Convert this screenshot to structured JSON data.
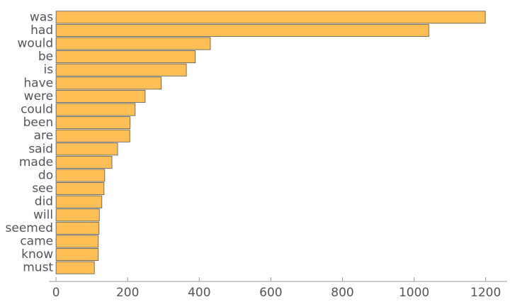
{
  "chart_data": {
    "type": "bar",
    "orientation": "horizontal",
    "categories": [
      "was",
      "had",
      "would",
      "be",
      "is",
      "have",
      "were",
      "could",
      "been",
      "are",
      "said",
      "made",
      "do",
      "see",
      "did",
      "will",
      "seemed",
      "came",
      "know",
      "must"
    ],
    "values": [
      1199,
      1041,
      431,
      389,
      364,
      294,
      249,
      221,
      207,
      206,
      172,
      156,
      136,
      134,
      128,
      121,
      120,
      118,
      118,
      107
    ],
    "color": "#fdbf56",
    "xlim": [
      -20,
      1260
    ],
    "xticks": [
      0,
      200,
      400,
      600,
      800,
      1000,
      1200
    ],
    "grid": false
  }
}
